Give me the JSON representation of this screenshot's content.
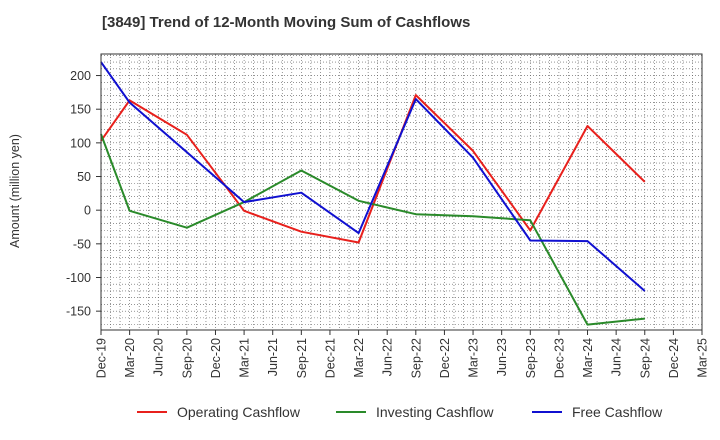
{
  "chart_data": {
    "type": "line",
    "title": "[3849]  Trend of 12-Month Moving Sum of Cashflows",
    "xlabel": "",
    "ylabel": "Amount (million yen)",
    "categories": [
      "Dec-19",
      "Mar-20",
      "Jun-20",
      "Sep-20",
      "Dec-20",
      "Mar-21",
      "Jun-21",
      "Sep-21",
      "Dec-21",
      "Mar-22",
      "Jun-22",
      "Sep-22",
      "Dec-22",
      "Mar-23",
      "Jun-23",
      "Sep-23",
      "Dec-23",
      "Mar-24",
      "Jun-24",
      "Sep-24",
      "Dec-24",
      "Mar-25"
    ],
    "ylim": [
      -178,
      232
    ],
    "yticks": [
      200,
      150,
      100,
      50,
      0,
      -50,
      -100,
      -150
    ],
    "grid": true,
    "legend_position": "bottom",
    "series": [
      {
        "name": "Operating Cashflow",
        "color": "#e8201c",
        "points": [
          [
            "Dec-19",
            103
          ],
          [
            "Mar-20",
            163
          ],
          [
            "Sep-20",
            112
          ],
          [
            "Mar-21",
            -1
          ],
          [
            "Sep-21",
            -32
          ],
          [
            "Mar-22",
            -48
          ],
          [
            "Sep-22",
            171
          ],
          [
            "Mar-23",
            88
          ],
          [
            "Sep-23",
            -30
          ],
          [
            "Mar-24",
            125
          ],
          [
            "Sep-24",
            42
          ]
        ]
      },
      {
        "name": "Investing Cashflow",
        "color": "#2a8a2a",
        "points": [
          [
            "Dec-19",
            113
          ],
          [
            "Mar-20",
            -1
          ],
          [
            "Sep-20",
            -26
          ],
          [
            "Mar-21",
            12
          ],
          [
            "Sep-21",
            59
          ],
          [
            "Mar-22",
            14
          ],
          [
            "Sep-22",
            -6
          ],
          [
            "Mar-23",
            -9
          ],
          [
            "Sep-23",
            -15
          ],
          [
            "Mar-24",
            -170
          ],
          [
            "Sep-24",
            -161
          ]
        ]
      },
      {
        "name": "Free Cashflow",
        "color": "#1010d0",
        "points": [
          [
            "Dec-19",
            220
          ],
          [
            "Mar-20",
            160
          ],
          [
            "Sep-20",
            86
          ],
          [
            "Mar-21",
            12
          ],
          [
            "Sep-21",
            26
          ],
          [
            "Mar-22",
            -34
          ],
          [
            "Sep-22",
            165
          ],
          [
            "Mar-23",
            78
          ],
          [
            "Sep-23",
            -45
          ],
          [
            "Mar-24",
            -46
          ],
          [
            "Sep-24",
            -120
          ]
        ]
      }
    ]
  }
}
